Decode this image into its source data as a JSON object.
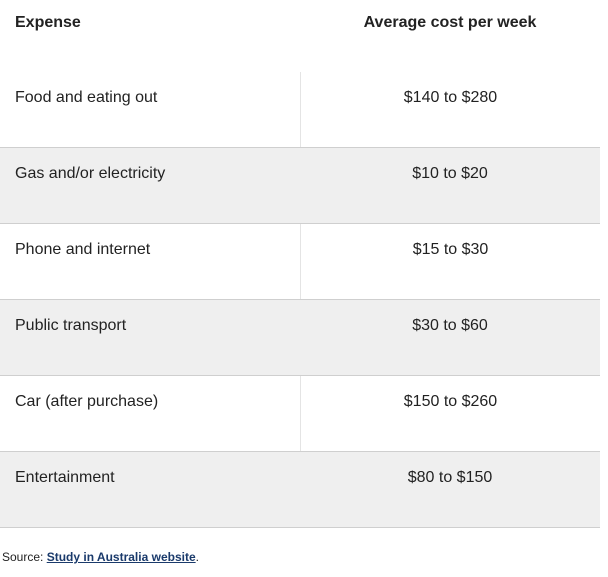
{
  "table": {
    "headers": [
      "Expense",
      "Average cost per week"
    ],
    "rows": [
      {
        "expense": "Food and eating out",
        "cost": "$140 to $280"
      },
      {
        "expense": "Gas and/or electricity",
        "cost": "$10 to $20"
      },
      {
        "expense": "Phone and internet",
        "cost": "$15 to $30"
      },
      {
        "expense": "Public transport",
        "cost": "$30 to $60"
      },
      {
        "expense": "Car (after purchase)",
        "cost": "$150 to $260"
      },
      {
        "expense": "Entertainment",
        "cost": "$80 to $150"
      }
    ]
  },
  "source": {
    "prefix": "Source: ",
    "link_text": "Study in Australia website",
    "suffix": "."
  },
  "colors": {
    "shaded_row": "#efefef",
    "link": "#1a3a6b"
  }
}
